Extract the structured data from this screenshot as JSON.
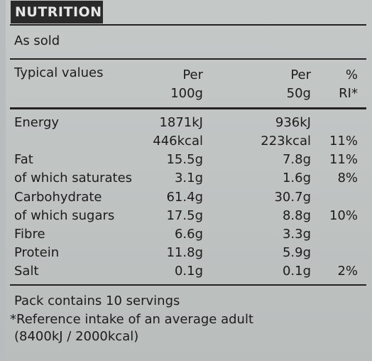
{
  "header": {
    "title": "NUTRITION"
  },
  "basis": "As sold",
  "columns": {
    "label": "Typical values",
    "per100_line1": "Per",
    "per100_line2": "100g",
    "perserving_line1": "Per",
    "perserving_line2": "50g",
    "ri_line1": "%",
    "ri_line2": "RI*"
  },
  "rows": [
    {
      "label": "Energy",
      "per100": "1871kJ",
      "perserving": "936kJ",
      "ri": ""
    },
    {
      "label": "",
      "per100": "446kcal",
      "perserving": "223kcal",
      "ri": "11%"
    },
    {
      "label": "Fat",
      "per100": "15.5g",
      "perserving": "7.8g",
      "ri": "11%"
    },
    {
      "label": "of which saturates",
      "per100": "3.1g",
      "perserving": "1.6g",
      "ri": "8%"
    },
    {
      "label": "Carbohydrate",
      "per100": "61.4g",
      "perserving": "30.7g",
      "ri": ""
    },
    {
      "label": "of which sugars",
      "per100": "17.5g",
      "perserving": "8.8g",
      "ri": "10%"
    },
    {
      "label": "Fibre",
      "per100": "6.6g",
      "perserving": "3.3g",
      "ri": ""
    },
    {
      "label": "Protein",
      "per100": "11.8g",
      "perserving": "5.9g",
      "ri": ""
    },
    {
      "label": "Salt",
      "per100": "0.1g",
      "perserving": "0.1g",
      "ri": "2%"
    }
  ],
  "footer": {
    "servings": "Pack contains 10 servings",
    "reference_line1": "*Reference intake of an average adult",
    "reference_line2": "(8400kJ / 2000kcal)"
  }
}
